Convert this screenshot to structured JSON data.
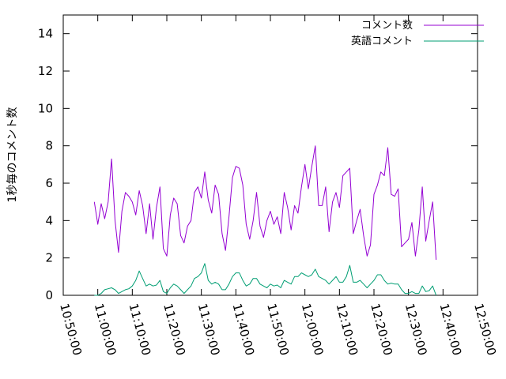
{
  "chart_data": {
    "type": "line",
    "title": "",
    "xlabel": "",
    "ylabel": "1秒毎のコメント数",
    "xticks": [
      "10:50:00",
      "11:00:00",
      "11:10:00",
      "11:20:00",
      "11:30:00",
      "11:40:00",
      "11:50:00",
      "12:00:00",
      "12:10:00",
      "12:20:00",
      "12:30:00",
      "12:40:00",
      "12:50:00"
    ],
    "yticks": [
      "0",
      "2",
      "4",
      "6",
      "8",
      "10",
      "12",
      "14"
    ],
    "xlim_minutes": [
      0,
      120
    ],
    "ylim": [
      0,
      15
    ],
    "grid": false,
    "legend_position": "top-right",
    "series": [
      {
        "name": "コメント数",
        "color": "#9400d3",
        "start_minute": 9,
        "step_minutes": 1,
        "values": [
          5.0,
          3.8,
          4.9,
          4.1,
          5.0,
          7.3,
          4.0,
          2.3,
          4.5,
          5.5,
          5.3,
          5.0,
          4.3,
          5.6,
          4.8,
          3.3,
          4.9,
          3.0,
          4.7,
          5.8,
          2.5,
          2.1,
          4.3,
          5.2,
          4.9,
          3.2,
          2.8,
          3.7,
          4.0,
          5.5,
          5.8,
          5.2,
          6.6,
          5.1,
          4.4,
          5.9,
          5.4,
          3.3,
          2.4,
          4.2,
          6.3,
          6.9,
          6.8,
          5.9,
          3.8,
          3.0,
          4.0,
          5.5,
          3.7,
          3.1,
          4.0,
          4.5,
          3.8,
          4.2,
          3.3,
          5.5,
          4.7,
          3.5,
          4.8,
          4.4,
          5.8,
          7.0,
          5.7,
          6.9,
          8.0,
          4.8,
          4.8,
          5.8,
          3.4,
          5.0,
          5.5,
          4.7,
          6.4,
          6.6,
          6.8,
          3.3,
          4.0,
          4.6,
          3.2,
          2.1,
          2.7,
          5.4,
          5.9,
          6.6,
          6.4,
          7.9,
          5.4,
          5.3,
          5.7,
          2.6,
          2.8,
          3.0,
          3.9,
          2.1,
          3.5,
          5.8,
          2.9,
          4.0,
          5.0,
          1.9
        ]
      },
      {
        "name": "英語コメント",
        "color": "#009e73",
        "start_minute": 9,
        "step_minutes": 1,
        "values": [
          0.0,
          0.0,
          0.1,
          0.3,
          0.35,
          0.4,
          0.3,
          0.1,
          0.2,
          0.3,
          0.35,
          0.5,
          0.8,
          1.3,
          0.9,
          0.5,
          0.6,
          0.5,
          0.55,
          0.8,
          0.2,
          0.1,
          0.4,
          0.6,
          0.5,
          0.3,
          0.1,
          0.3,
          0.5,
          0.9,
          1.0,
          1.2,
          1.7,
          0.8,
          0.6,
          0.7,
          0.6,
          0.3,
          0.3,
          0.6,
          1.0,
          1.2,
          1.2,
          0.8,
          0.5,
          0.6,
          0.9,
          0.9,
          0.6,
          0.5,
          0.4,
          0.6,
          0.5,
          0.55,
          0.4,
          0.8,
          0.7,
          0.6,
          1.0,
          1.0,
          1.2,
          1.1,
          1.0,
          1.1,
          1.4,
          1.0,
          0.9,
          0.8,
          0.6,
          0.8,
          1.0,
          0.7,
          0.7,
          1.0,
          1.6,
          0.7,
          0.7,
          0.8,
          0.6,
          0.4,
          0.6,
          0.8,
          1.1,
          1.1,
          0.8,
          0.6,
          0.65,
          0.6,
          0.6,
          0.3,
          0.1,
          0.1,
          0.2,
          0.1,
          0.1,
          0.5,
          0.2,
          0.25,
          0.5,
          0.0
        ]
      }
    ]
  }
}
